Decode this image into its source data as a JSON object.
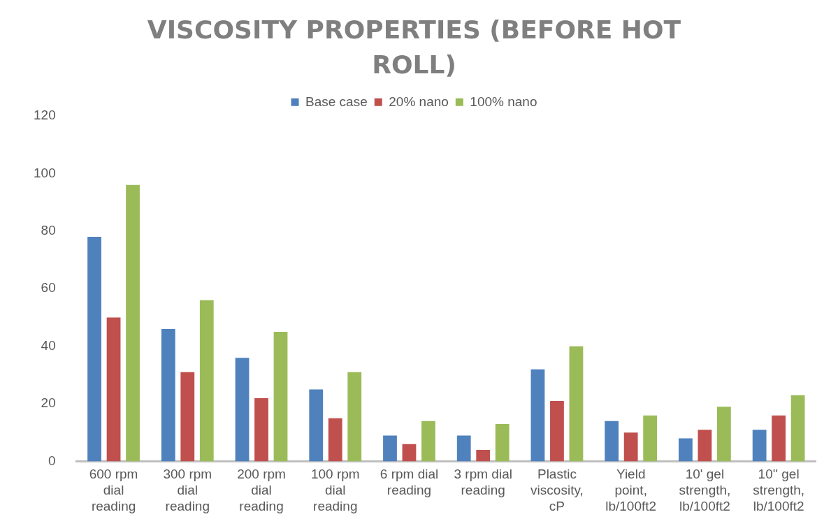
{
  "chart_data": {
    "type": "bar",
    "title": "VISCOSITY PROPERTIES (BEFORE HOT ROLL)",
    "categories": [
      "600 rpm dial reading",
      "300 rpm dial reading",
      "200 rpm dial reading",
      "100 rpm dial reading",
      "6 rpm dial reading",
      "3 rpm dial reading",
      "Plastic viscosity, cP",
      "Yield point, lb/100ft2",
      "10' gel strength, lb/100ft2",
      "10'' gel strength, lb/100ft2"
    ],
    "series": [
      {
        "name": "Base case",
        "color": "#4f81bd",
        "values": [
          78,
          46,
          36,
          25,
          9,
          9,
          32,
          14,
          8,
          11
        ]
      },
      {
        "name": "20% nano",
        "color": "#c0504d",
        "values": [
          50,
          31,
          22,
          15,
          6,
          4,
          21,
          10,
          11,
          16
        ]
      },
      {
        "name": "100% nano",
        "color": "#9bbb59",
        "values": [
          96,
          56,
          45,
          31,
          14,
          13,
          40,
          16,
          19,
          23
        ]
      }
    ],
    "ylim": [
      0,
      120
    ],
    "yticks": [
      0,
      20,
      40,
      60,
      80,
      100,
      120
    ],
    "grid": false,
    "legend": "top"
  }
}
